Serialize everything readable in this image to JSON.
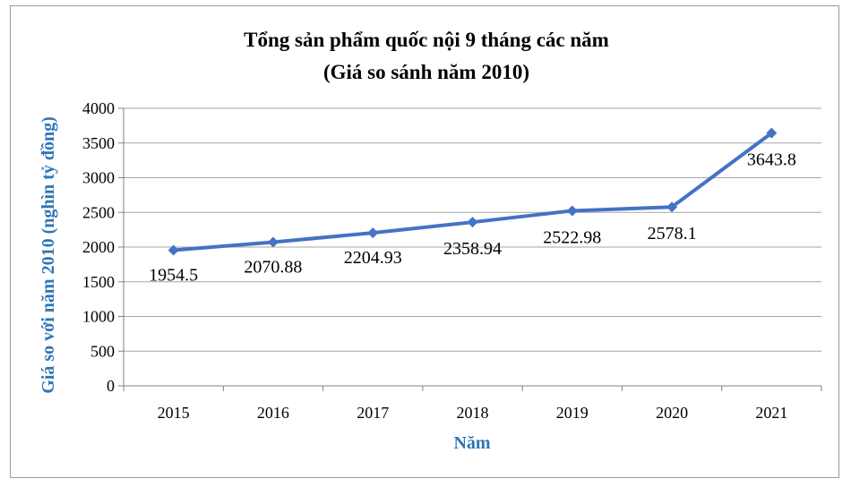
{
  "colors": {
    "series": "#4472c4",
    "axis_title": "#2e75b6",
    "grid": "#a6a6a6"
  },
  "chart_data": {
    "type": "line",
    "title": "Tổng sản phẩm quốc nội 9 tháng các năm",
    "subtitle": "(Giá so sánh năm 2010)",
    "xlabel": "Năm",
    "ylabel": "Giá so với năm 2010 (nghìn tỷ đồng)",
    "ylim": [
      0,
      4000
    ],
    "yticks": [
      "0",
      "500",
      "1000",
      "1500",
      "2000",
      "2500",
      "3000",
      "3500",
      "4000"
    ],
    "categories": [
      "2015",
      "2016",
      "2017",
      "2018",
      "2019",
      "2020",
      "2021"
    ],
    "series": [
      {
        "values": [
          1954.5,
          2070.88,
          2204.93,
          2358.94,
          2522.98,
          2578.1,
          3643.8
        ],
        "labels": [
          "1954.5",
          "2070.88",
          "2204.93",
          "2358.94",
          "2522.98",
          "2578.1",
          "3643.8"
        ]
      }
    ],
    "grid": true,
    "legend": "none"
  }
}
